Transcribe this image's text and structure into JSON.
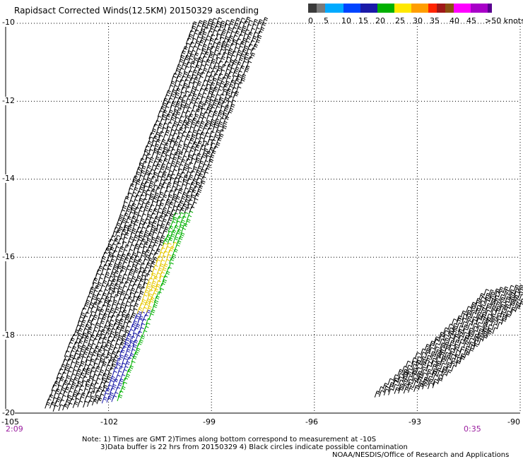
{
  "title": "Rapidsact Corrected Winds(12.5KM) 20150329 ascending",
  "scale": {
    "labels": [
      "0",
      "5",
      "10",
      "15",
      "20",
      "25",
      "30",
      "35",
      "40",
      "45",
      ">50 knots"
    ],
    "colors": [
      "#3a3a3a",
      "#7a7a7a",
      "#00aaff",
      "#0044ff",
      "#1a1aa8",
      "#00b000",
      "#ffe800",
      "#ff9e00",
      "#ff2400",
      "#a01818",
      "#8a5010",
      "#ff00ff",
      "#a800c8",
      "#5a0090"
    ]
  },
  "map": {
    "lat_labels": [
      "-10",
      "-12",
      "-14",
      "-16",
      "-18",
      "-20"
    ],
    "lon_labels": [
      "-105",
      "-102",
      "-99",
      "-96",
      "-93",
      "-90"
    ],
    "lat_range": [
      -20,
      -10
    ],
    "lon_range": [
      -105,
      -90
    ]
  },
  "times": {
    "left": "2:09",
    "right": "0:35"
  },
  "swaths": [
    {
      "name": "main-swath",
      "lon_start": -102.6,
      "lat_start": -20.0,
      "lon_end": -98.2,
      "lat_end": -10.0,
      "width_deg": 2.6,
      "speed": "5-15 knots"
    },
    {
      "name": "east-swath",
      "lon_start": -93.2,
      "lat_start": -19.6,
      "lon_end": -90.0,
      "lat_end": -17.0,
      "width_deg": 2.1,
      "speed": "5-10 knots"
    }
  ],
  "notes": [
    "Note: 1) Times are GMT 2)Times along bottom correspond to measurement at -10S",
    "3)Data buffer is 22 hrs from 20150329 4) Black circles indicate possible contamination",
    "NOAA/NESDIS/Office of Research and Applications"
  ]
}
